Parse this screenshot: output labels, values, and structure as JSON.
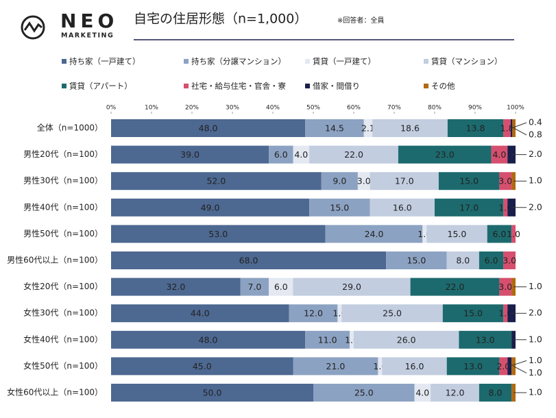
{
  "header": {
    "logo": "NEO",
    "logo_sub": "MARKETING"
  },
  "chart_data": {
    "type": "stacked-bar",
    "orientation": "horizontal",
    "title": "自宅の住居形態（n=1,000）",
    "note": "※回答者：全員",
    "categories": [
      "全体（n=1000）",
      "男性20代（n=100）",
      "男性30代（n=100）",
      "男性40代（n=100）",
      "男性50代（n=100）",
      "男性60代以上（n=100）",
      "女性20代（n=100）",
      "女性30代（n=100）",
      "女性40代（n=100）",
      "女性50代（n=100）",
      "女性60代以上（n=100）"
    ],
    "series": [
      {
        "name": "持ち家（一戸建て）",
        "color": "#4d6891",
        "values": [
          48.0,
          39.0,
          52.0,
          49.0,
          53.0,
          68.0,
          32.0,
          44.0,
          48.0,
          45.0,
          50.0
        ],
        "value_labels": [
          "48.0",
          "39.0",
          "52.0",
          "49.0",
          "53.0",
          "68.0",
          "32.0",
          "44.0",
          "48.0",
          "45.0",
          "50.0"
        ]
      },
      {
        "name": "持ち家（分譲マンション）",
        "color": "#8ca2c2",
        "values": [
          14.5,
          6.0,
          9.0,
          15.0,
          24.0,
          15.0,
          7.0,
          12.0,
          11.0,
          21.0,
          25.0
        ],
        "value_labels": [
          "14.5",
          "6.0",
          "9.0",
          "15.0",
          "24.0",
          "15.0",
          "7.0",
          "12.0",
          "11.0",
          "21.0",
          "25.0"
        ]
      },
      {
        "name": "賃貸（一戸建て）",
        "color": "#e3e8f1",
        "values": [
          2.1,
          4.0,
          3.0,
          0,
          1.0,
          0,
          6.0,
          1.0,
          1.0,
          1.0,
          4.0
        ],
        "value_labels": [
          "2.1",
          "4.0",
          "3.0",
          null,
          "1.0",
          null,
          "6.0",
          "1.0",
          "1.0",
          "1.0",
          "4.0"
        ]
      },
      {
        "name": "賃貸（マンション）",
        "color": "#c2cde0",
        "values": [
          18.6,
          22.0,
          17.0,
          16.0,
          15.0,
          8.0,
          29.0,
          25.0,
          26.0,
          16.0,
          12.0
        ],
        "value_labels": [
          "18.6",
          "22.0",
          "17.0",
          "16.0",
          "15.0",
          "8.0",
          "29.0",
          "25.0",
          "26.0",
          "16.0",
          "12.0"
        ]
      },
      {
        "name": "賃貸（アパート）",
        "color": "#1c6a6e",
        "values": [
          13.8,
          23.0,
          15.0,
          17.0,
          6.0,
          6.0,
          22.0,
          15.0,
          13.0,
          13.0,
          8.0
        ],
        "value_labels": [
          "13.8",
          "23.0",
          "15.0",
          "17.0",
          "6.0",
          "6.0",
          "22.0",
          "15.0",
          "13.0",
          "13.0",
          "8.0"
        ]
      },
      {
        "name": "社宅・給与住宅・官舎・寮",
        "color": "#d64f6e",
        "values": [
          1.8,
          4.0,
          3.0,
          1.0,
          1.0,
          3.0,
          3.0,
          1.0,
          0,
          2.0,
          0
        ],
        "value_labels": [
          "1.8",
          "4.0",
          "3.0",
          "1.0",
          "1.0",
          "3.0",
          "3.0",
          "1.0",
          null,
          "2.0",
          null
        ]
      },
      {
        "name": "借家・間借り",
        "color": "#1a1e4b",
        "values": [
          0.4,
          2.0,
          0,
          2.0,
          0,
          0,
          0,
          2.0,
          1.0,
          1.0,
          0
        ],
        "value_labels": [
          "0.4",
          "2.0",
          null,
          "2.0",
          null,
          null,
          null,
          "2.0",
          "1.0",
          "1.0",
          null
        ]
      },
      {
        "name": "その他",
        "color": "#b06a12",
        "values": [
          0.8,
          0,
          1.0,
          0,
          0,
          0,
          1.0,
          0,
          0,
          1.0,
          1.0
        ],
        "value_labels": [
          "0.8",
          null,
          "1.0",
          null,
          null,
          null,
          "1.0",
          null,
          null,
          "1.0",
          "1.0"
        ]
      }
    ],
    "xlim": [
      0,
      100
    ],
    "xticks": [
      {
        "value": 0,
        "label": "0%"
      },
      {
        "value": 10,
        "label": "10%"
      },
      {
        "value": 20,
        "label": "20%"
      },
      {
        "value": 30,
        "label": "30%"
      },
      {
        "value": 40,
        "label": "40%"
      },
      {
        "value": 50,
        "label": "50%"
      },
      {
        "value": 60,
        "label": "60%"
      },
      {
        "value": 70,
        "label": "70%"
      },
      {
        "value": 80,
        "label": "80%"
      },
      {
        "value": 90,
        "label": "90%"
      },
      {
        "value": 100,
        "label": "100%"
      }
    ],
    "legend": "top"
  }
}
